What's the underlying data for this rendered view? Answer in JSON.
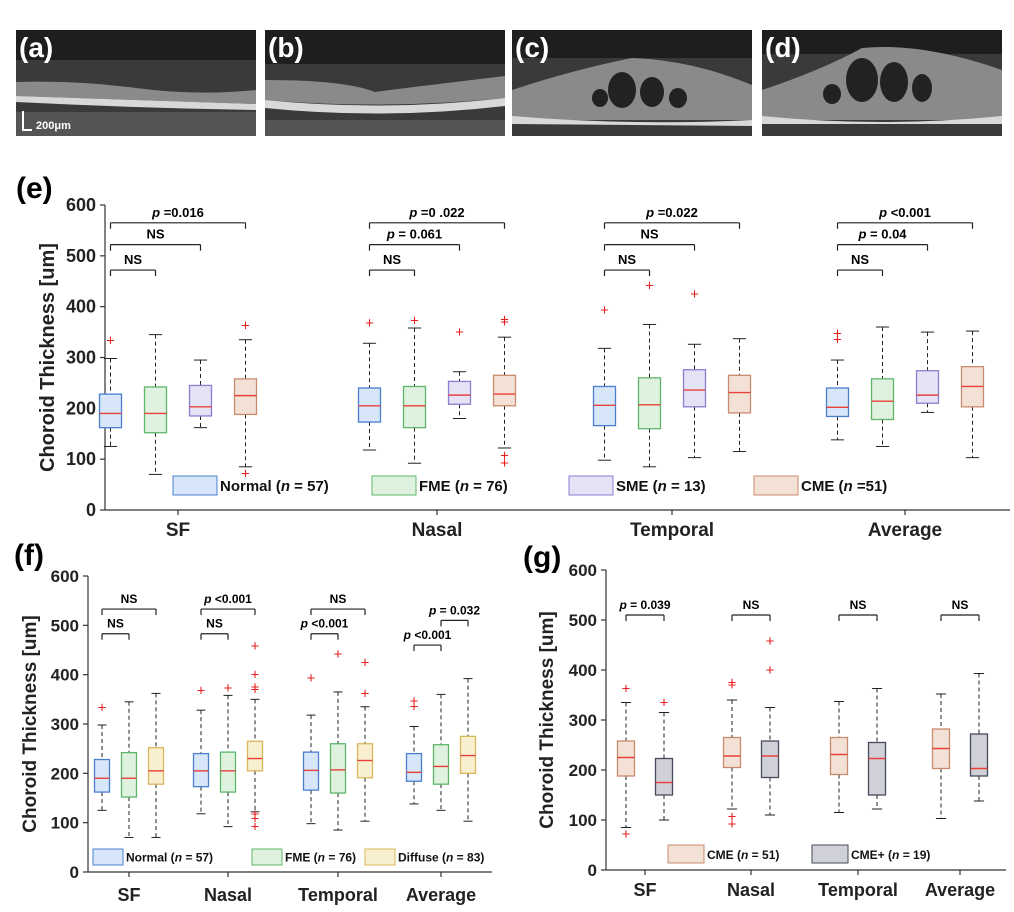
{
  "images": [
    {
      "label": "(a)",
      "scale_label": "200μm"
    },
    {
      "label": "(b)"
    },
    {
      "label": "(c)"
    },
    {
      "label": "(d)"
    }
  ],
  "colors": {
    "Normal": "#4a7fd1",
    "FME": "#5fb66a",
    "SME": "#8a7fd0",
    "CME": "#c98a6e",
    "Diffuse": "#d8b85a",
    "CME+": "#454a5c"
  },
  "fills": {
    "Normal": "#d7e6f8",
    "FME": "#dff1df",
    "SME": "#e4e2f5",
    "CME": "#f4e1d5",
    "Diffuse": "#f7efcf",
    "CME+": "#d0d1d8"
  },
  "chart_data": [
    {
      "panel": "(e)",
      "type": "box",
      "ylabel": "Choroid Thickness [um]",
      "ylim": [
        0,
        600
      ],
      "yticks": [
        0,
        100,
        200,
        300,
        400,
        500,
        600
      ],
      "categories": [
        "SF",
        "Nasal",
        "Temporal",
        "Average"
      ],
      "series": [
        "Normal",
        "FME",
        "SME",
        "CME"
      ],
      "legend": [
        {
          "group": "Normal",
          "label": "Normal (n = 57)",
          "name": "Normal",
          "n": "57"
        },
        {
          "group": "FME",
          "label": "FME (n = 76)",
          "name": "FME",
          "n": "76"
        },
        {
          "group": "SME",
          "label": "SME (n = 13)",
          "name": "SME",
          "n": "13"
        },
        {
          "group": "CME",
          "label": "CME (n =51)",
          "name": "CME",
          "n": "51"
        }
      ],
      "boxes": [
        {
          "cat": 0,
          "group": "Normal",
          "min": 125,
          "q1": 162,
          "med": 190,
          "q3": 228,
          "max": 298,
          "out": [
            333
          ]
        },
        {
          "cat": 0,
          "group": "FME",
          "min": 70,
          "q1": 152,
          "med": 190,
          "q3": 242,
          "max": 345,
          "out": []
        },
        {
          "cat": 0,
          "group": "SME",
          "min": 162,
          "q1": 185,
          "med": 203,
          "q3": 245,
          "max": 295,
          "out": []
        },
        {
          "cat": 0,
          "group": "CME",
          "min": 85,
          "q1": 188,
          "med": 225,
          "q3": 258,
          "max": 335,
          "out": [
            363,
            72
          ]
        },
        {
          "cat": 1,
          "group": "Normal",
          "min": 118,
          "q1": 173,
          "med": 205,
          "q3": 240,
          "max": 328,
          "out": [
            368
          ]
        },
        {
          "cat": 1,
          "group": "FME",
          "min": 92,
          "q1": 162,
          "med": 205,
          "q3": 243,
          "max": 358,
          "out": [
            373
          ]
        },
        {
          "cat": 1,
          "group": "SME",
          "min": 180,
          "q1": 208,
          "med": 226,
          "q3": 253,
          "max": 272,
          "out": [
            350
          ]
        },
        {
          "cat": 1,
          "group": "CME",
          "min": 122,
          "q1": 205,
          "med": 228,
          "q3": 265,
          "max": 340,
          "out": [
            370,
            375,
            107,
            92
          ]
        },
        {
          "cat": 2,
          "group": "Normal",
          "min": 98,
          "q1": 166,
          "med": 206,
          "q3": 243,
          "max": 318,
          "out": [
            393
          ]
        },
        {
          "cat": 2,
          "group": "FME",
          "min": 85,
          "q1": 160,
          "med": 207,
          "q3": 260,
          "max": 365,
          "out": [
            442
          ]
        },
        {
          "cat": 2,
          "group": "SME",
          "min": 103,
          "q1": 203,
          "med": 236,
          "q3": 276,
          "max": 326,
          "out": [
            425
          ]
        },
        {
          "cat": 2,
          "group": "CME",
          "min": 115,
          "q1": 191,
          "med": 231,
          "q3": 265,
          "max": 337,
          "out": []
        },
        {
          "cat": 3,
          "group": "Normal",
          "min": 138,
          "q1": 184,
          "med": 202,
          "q3": 240,
          "max": 295,
          "out": [
            347,
            335
          ]
        },
        {
          "cat": 3,
          "group": "FME",
          "min": 125,
          "q1": 178,
          "med": 214,
          "q3": 258,
          "max": 360,
          "out": []
        },
        {
          "cat": 3,
          "group": "SME",
          "min": 192,
          "q1": 210,
          "med": 226,
          "q3": 274,
          "max": 350,
          "out": []
        },
        {
          "cat": 3,
          "group": "CME",
          "min": 103,
          "q1": 203,
          "med": 243,
          "q3": 282,
          "max": 352,
          "out": []
        }
      ],
      "brackets": [
        {
          "cat": 0,
          "from": 0,
          "to": 1,
          "y": 472,
          "label": "NS"
        },
        {
          "cat": 0,
          "from": 0,
          "to": 2,
          "y": 522,
          "label": "NS"
        },
        {
          "cat": 0,
          "from": 0,
          "to": 3,
          "y": 565,
          "label": "p =0.016"
        },
        {
          "cat": 1,
          "from": 0,
          "to": 1,
          "y": 472,
          "label": "NS"
        },
        {
          "cat": 1,
          "from": 0,
          "to": 2,
          "y": 522,
          "label": "p = 0.061"
        },
        {
          "cat": 1,
          "from": 0,
          "to": 3,
          "y": 565,
          "label": "p =0 .022"
        },
        {
          "cat": 2,
          "from": 0,
          "to": 1,
          "y": 472,
          "label": "NS"
        },
        {
          "cat": 2,
          "from": 0,
          "to": 2,
          "y": 522,
          "label": "NS"
        },
        {
          "cat": 2,
          "from": 0,
          "to": 3,
          "y": 565,
          "label": "p =0.022"
        },
        {
          "cat": 3,
          "from": 0,
          "to": 1,
          "y": 472,
          "label": "NS"
        },
        {
          "cat": 3,
          "from": 0,
          "to": 2,
          "y": 522,
          "label": "p = 0.04"
        },
        {
          "cat": 3,
          "from": 0,
          "to": 3,
          "y": 565,
          "label": "p <0.001"
        }
      ]
    },
    {
      "panel": "(f)",
      "type": "box",
      "ylabel": "Choroid Thickness [um]",
      "ylim": [
        0,
        600
      ],
      "yticks": [
        0,
        100,
        200,
        300,
        400,
        500,
        600
      ],
      "categories": [
        "SF",
        "Nasal",
        "Temporal",
        "Average"
      ],
      "series": [
        "Normal",
        "FME",
        "Diffuse"
      ],
      "legend": [
        {
          "group": "Normal",
          "label": "Normal (n = 57)",
          "name": "Normal",
          "n": "57"
        },
        {
          "group": "FME",
          "label": "FME (n = 76)",
          "name": "FME",
          "n": "76"
        },
        {
          "group": "Diffuse",
          "label": "Diffuse (n = 83)",
          "name": "Diffuse",
          "n": "83"
        }
      ],
      "boxes": [
        {
          "cat": 0,
          "group": "Normal",
          "min": 125,
          "q1": 162,
          "med": 190,
          "q3": 228,
          "max": 298,
          "out": [
            333
          ]
        },
        {
          "cat": 0,
          "group": "FME",
          "min": 70,
          "q1": 152,
          "med": 190,
          "q3": 242,
          "max": 345,
          "out": []
        },
        {
          "cat": 0,
          "group": "Diffuse",
          "min": 70,
          "q1": 178,
          "med": 205,
          "q3": 252,
          "max": 362,
          "out": []
        },
        {
          "cat": 1,
          "group": "Normal",
          "min": 118,
          "q1": 173,
          "med": 205,
          "q3": 240,
          "max": 328,
          "out": [
            368
          ]
        },
        {
          "cat": 1,
          "group": "FME",
          "min": 92,
          "q1": 162,
          "med": 205,
          "q3": 243,
          "max": 358,
          "out": [
            373
          ]
        },
        {
          "cat": 1,
          "group": "Diffuse",
          "min": 122,
          "q1": 205,
          "med": 230,
          "q3": 265,
          "max": 350,
          "out": [
            458,
            400,
            375,
            370,
            118,
            108,
            92
          ]
        },
        {
          "cat": 2,
          "group": "Normal",
          "min": 98,
          "q1": 166,
          "med": 206,
          "q3": 243,
          "max": 318,
          "out": [
            393
          ]
        },
        {
          "cat": 2,
          "group": "FME",
          "min": 85,
          "q1": 160,
          "med": 207,
          "q3": 260,
          "max": 365,
          "out": [
            442
          ]
        },
        {
          "cat": 2,
          "group": "Diffuse",
          "min": 103,
          "q1": 191,
          "med": 226,
          "q3": 260,
          "max": 335,
          "out": [
            425,
            362
          ]
        },
        {
          "cat": 3,
          "group": "Normal",
          "min": 138,
          "q1": 184,
          "med": 202,
          "q3": 240,
          "max": 295,
          "out": [
            347,
            335
          ]
        },
        {
          "cat": 3,
          "group": "FME",
          "min": 125,
          "q1": 178,
          "med": 214,
          "q3": 258,
          "max": 360,
          "out": []
        },
        {
          "cat": 3,
          "group": "Diffuse",
          "min": 103,
          "q1": 200,
          "med": 236,
          "q3": 275,
          "max": 392,
          "out": []
        }
      ],
      "brackets": [
        {
          "cat": 0,
          "from": 0,
          "to": 1,
          "y": 483,
          "label": "NS"
        },
        {
          "cat": 0,
          "from": 0,
          "to": 2,
          "y": 533,
          "label": "NS"
        },
        {
          "cat": 1,
          "from": 0,
          "to": 1,
          "y": 483,
          "label": "NS"
        },
        {
          "cat": 1,
          "from": 0,
          "to": 2,
          "y": 533,
          "label": "p <0.001"
        },
        {
          "cat": 2,
          "from": 0,
          "to": 1,
          "y": 483,
          "label": "p <0.001"
        },
        {
          "cat": 2,
          "from": 0,
          "to": 2,
          "y": 533,
          "label": "NS"
        },
        {
          "cat": 3,
          "from": 0,
          "to": 1,
          "y": 460,
          "label": "p <0.001"
        },
        {
          "cat": 3,
          "from": 1,
          "to": 2,
          "y": 510,
          "label": "p = 0.032"
        }
      ]
    },
    {
      "panel": "(g)",
      "type": "box",
      "ylabel": "Choroid Thickness [um]",
      "ylim": [
        0,
        600
      ],
      "yticks": [
        0,
        100,
        200,
        300,
        400,
        500,
        600
      ],
      "categories": [
        "SF",
        "Nasal",
        "Temporal",
        "Average"
      ],
      "series": [
        "CME",
        "CME+"
      ],
      "legend": [
        {
          "group": "CME",
          "label": "CME (n = 51)",
          "name": "CME",
          "n": "51"
        },
        {
          "group": "CME+",
          "label": "CME+ (n = 19)",
          "name": "CME+",
          "n": "19"
        }
      ],
      "boxes": [
        {
          "cat": 0,
          "group": "CME",
          "min": 85,
          "q1": 188,
          "med": 225,
          "q3": 258,
          "max": 335,
          "out": [
            363,
            72
          ]
        },
        {
          "cat": 0,
          "group": "CME+",
          "min": 100,
          "q1": 150,
          "med": 175,
          "q3": 223,
          "max": 315,
          "out": [
            335
          ]
        },
        {
          "cat": 1,
          "group": "CME",
          "min": 122,
          "q1": 205,
          "med": 228,
          "q3": 265,
          "max": 340,
          "out": [
            370,
            375,
            107,
            92
          ]
        },
        {
          "cat": 1,
          "group": "CME+",
          "min": 110,
          "q1": 185,
          "med": 228,
          "q3": 258,
          "max": 325,
          "out": [
            458,
            400
          ]
        },
        {
          "cat": 2,
          "group": "CME",
          "min": 115,
          "q1": 191,
          "med": 231,
          "q3": 265,
          "max": 337,
          "out": []
        },
        {
          "cat": 2,
          "group": "CME+",
          "min": 122,
          "q1": 150,
          "med": 223,
          "q3": 255,
          "max": 363,
          "out": []
        },
        {
          "cat": 3,
          "group": "CME",
          "min": 103,
          "q1": 203,
          "med": 243,
          "q3": 282,
          "max": 352,
          "out": []
        },
        {
          "cat": 3,
          "group": "CME+",
          "min": 138,
          "q1": 188,
          "med": 203,
          "q3": 272,
          "max": 393,
          "out": []
        }
      ],
      "brackets": [
        {
          "cat": 0,
          "from": 0,
          "to": 1,
          "y": 510,
          "label": "p = 0.039"
        },
        {
          "cat": 1,
          "from": 0,
          "to": 1,
          "y": 510,
          "label": "NS"
        },
        {
          "cat": 2,
          "from": 0,
          "to": 1,
          "y": 510,
          "label": "NS"
        },
        {
          "cat": 3,
          "from": 0,
          "to": 1,
          "y": 510,
          "label": "NS"
        }
      ]
    }
  ]
}
